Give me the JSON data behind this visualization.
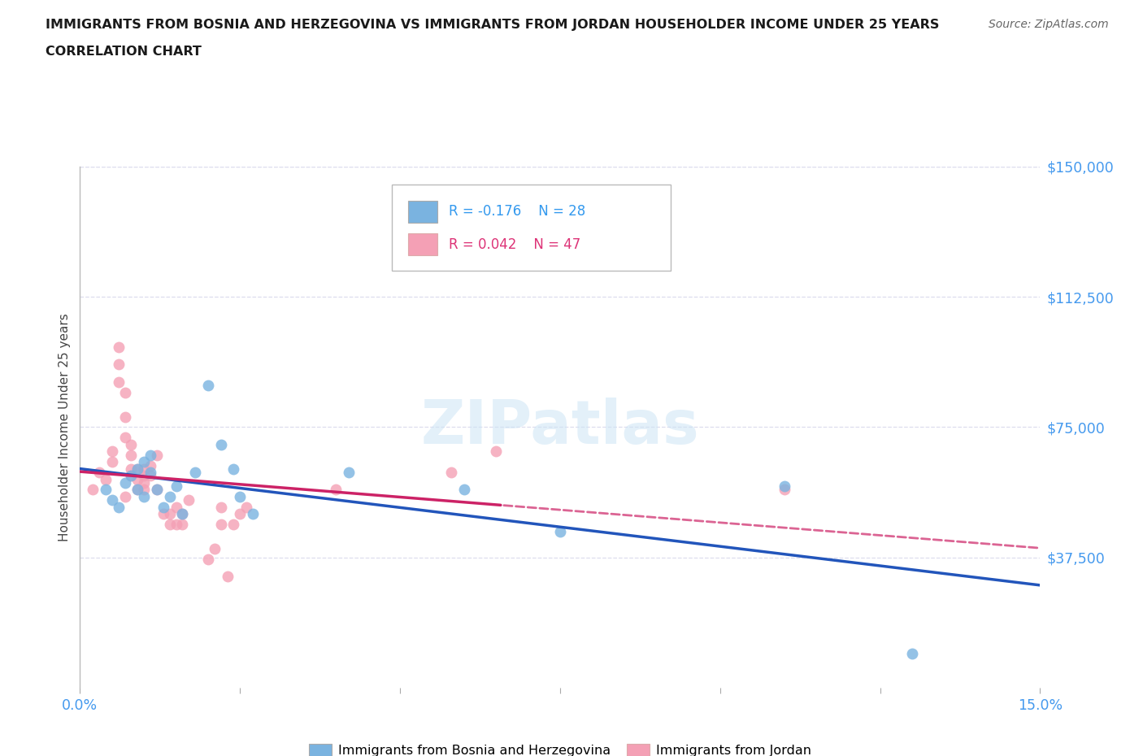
{
  "title_line1": "IMMIGRANTS FROM BOSNIA AND HERZEGOVINA VS IMMIGRANTS FROM JORDAN HOUSEHOLDER INCOME UNDER 25 YEARS",
  "title_line2": "CORRELATION CHART",
  "source": "Source: ZipAtlas.com",
  "ylabel": "Householder Income Under 25 years",
  "xmin": 0.0,
  "xmax": 0.15,
  "ymin": 0,
  "ymax": 150000,
  "yticks": [
    0,
    37500,
    75000,
    112500,
    150000
  ],
  "ytick_labels": [
    "",
    "$37,500",
    "$75,000",
    "$112,500",
    "$150,000"
  ],
  "grid_color": "#ddddee",
  "watermark": "ZIPatlas",
  "color_bosnia": "#7ab3e0",
  "color_jordan": "#f4a0b5",
  "trendline_color_bosnia": "#2255bb",
  "trendline_color_jordan": "#cc2266",
  "bosnia_x": [
    0.004,
    0.005,
    0.006,
    0.007,
    0.008,
    0.009,
    0.009,
    0.01,
    0.01,
    0.011,
    0.011,
    0.012,
    0.013,
    0.014,
    0.015,
    0.016,
    0.018,
    0.02,
    0.022,
    0.024,
    0.025,
    0.027,
    0.042,
    0.06,
    0.075,
    0.11,
    0.13
  ],
  "bosnia_y": [
    57000,
    54000,
    52000,
    59000,
    61000,
    57000,
    63000,
    65000,
    55000,
    67000,
    62000,
    57000,
    52000,
    55000,
    58000,
    50000,
    62000,
    87000,
    70000,
    63000,
    55000,
    50000,
    62000,
    57000,
    45000,
    58000,
    10000
  ],
  "jordan_x": [
    0.002,
    0.003,
    0.004,
    0.005,
    0.005,
    0.006,
    0.006,
    0.006,
    0.007,
    0.007,
    0.007,
    0.007,
    0.008,
    0.008,
    0.008,
    0.008,
    0.009,
    0.009,
    0.009,
    0.01,
    0.01,
    0.01,
    0.01,
    0.011,
    0.011,
    0.012,
    0.012,
    0.013,
    0.014,
    0.014,
    0.015,
    0.015,
    0.016,
    0.016,
    0.017,
    0.02,
    0.021,
    0.022,
    0.022,
    0.023,
    0.024,
    0.025,
    0.026,
    0.04,
    0.058,
    0.065,
    0.11
  ],
  "jordan_y": [
    57000,
    62000,
    60000,
    65000,
    68000,
    88000,
    93000,
    98000,
    72000,
    78000,
    85000,
    55000,
    61000,
    63000,
    67000,
    70000,
    57000,
    60000,
    63000,
    59000,
    61000,
    63000,
    57000,
    61000,
    64000,
    67000,
    57000,
    50000,
    47000,
    50000,
    52000,
    47000,
    47000,
    50000,
    54000,
    37000,
    40000,
    52000,
    47000,
    32000,
    47000,
    50000,
    52000,
    57000,
    62000,
    68000,
    57000
  ]
}
